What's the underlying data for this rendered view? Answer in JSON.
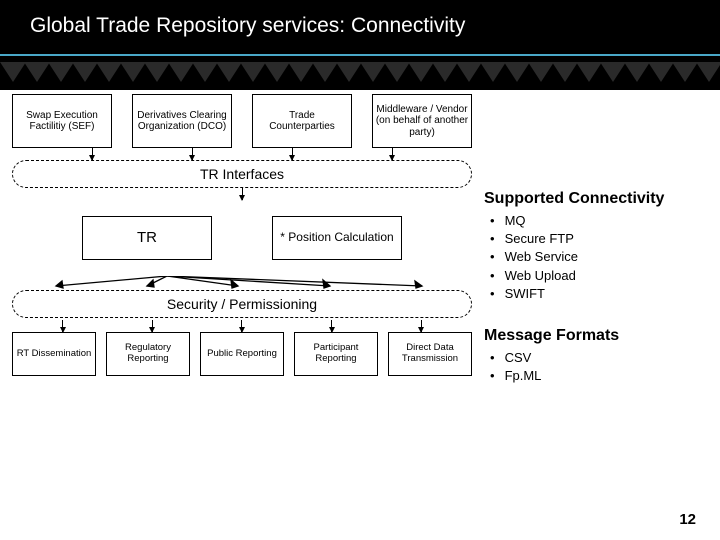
{
  "header": {
    "title": "Global Trade Repository services: Connectivity"
  },
  "diagram": {
    "top_boxes": [
      "Swap Execution Factilitiy (SEF)",
      "Derivatives Clearing Organization (DCO)",
      "Trade Counterparties",
      "Middleware / Vendor (on behalf of another party)"
    ],
    "interfaces_label": "TR Interfaces",
    "tr_label": "TR",
    "position_label": "* Position Calculation",
    "security_label": "Security / Permissioning",
    "bottom_boxes": [
      "RT Dissemination",
      "Regulatory Reporting",
      "Public Reporting",
      "Participant Reporting",
      "Direct Data Transmission"
    ],
    "box_border": "#000000",
    "bg": "#ffffff"
  },
  "sidebar": {
    "sections": [
      {
        "title": "Supported Connectivity",
        "items": [
          "MQ",
          "Secure FTP",
          "Web Service",
          "Web Upload",
          "SWIFT"
        ]
      },
      {
        "title": "Message Formats",
        "items": [
          "CSV",
          "Fp.ML"
        ]
      }
    ]
  },
  "page_number": "12",
  "colors": {
    "header_bg": "#000000",
    "header_fg": "#ffffff",
    "accent": "#4aa8c8",
    "deco_tri": "#2a2a2a"
  }
}
